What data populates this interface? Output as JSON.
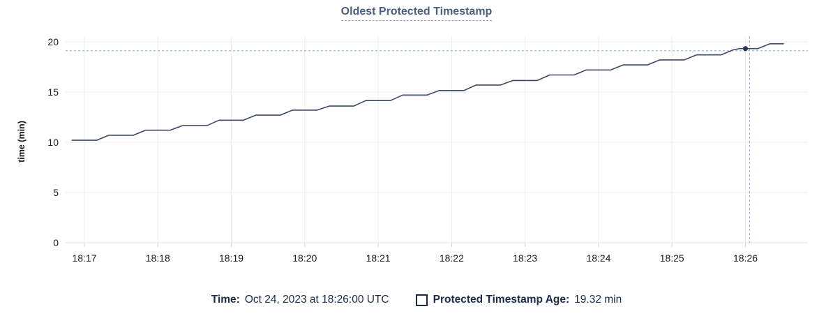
{
  "title": "Oldest Protected Timestamp",
  "legend": {
    "time_label": "Time:",
    "time_value": "Oct 24, 2023 at 18:26:00 UTC",
    "series_label": "Protected Timestamp Age:",
    "series_value": "19.32 min"
  },
  "chart_data": {
    "type": "line",
    "title": "Oldest Protected Timestamp",
    "xlabel": "",
    "ylabel": "time (min)",
    "y_ticks": [
      0,
      5,
      10,
      15,
      20
    ],
    "x_tick_labels": [
      "18:17",
      "18:18",
      "18:19",
      "18:20",
      "18:21",
      "18:22",
      "18:23",
      "18:24",
      "18:25",
      "18:26"
    ],
    "xlim_minutes_after_1800": [
      16.744,
      26.85
    ],
    "ylim": [
      0,
      20.83
    ],
    "grid": true,
    "legend_position": "bottom",
    "series": [
      {
        "name": "Protected Timestamp Age",
        "unit": "min",
        "points": [
          [
            "18:16:50",
            10.2
          ],
          [
            "18:17:10",
            10.2
          ],
          [
            "18:17:20",
            10.7
          ],
          [
            "18:17:40",
            10.7
          ],
          [
            "18:17:50",
            11.2
          ],
          [
            "18:18:10",
            11.2
          ],
          [
            "18:18:20",
            11.65
          ],
          [
            "18:18:40",
            11.65
          ],
          [
            "18:18:50",
            12.2
          ],
          [
            "18:19:10",
            12.2
          ],
          [
            "18:19:20",
            12.7
          ],
          [
            "18:19:40",
            12.7
          ],
          [
            "18:19:50",
            13.2
          ],
          [
            "18:20:10",
            13.2
          ],
          [
            "18:20:20",
            13.6
          ],
          [
            "18:20:40",
            13.6
          ],
          [
            "18:20:50",
            14.15
          ],
          [
            "18:21:10",
            14.15
          ],
          [
            "18:21:20",
            14.7
          ],
          [
            "18:21:40",
            14.7
          ],
          [
            "18:21:50",
            15.15
          ],
          [
            "18:22:10",
            15.15
          ],
          [
            "18:22:20",
            15.7
          ],
          [
            "18:22:40",
            15.7
          ],
          [
            "18:22:50",
            16.15
          ],
          [
            "18:23:10",
            16.15
          ],
          [
            "18:23:20",
            16.7
          ],
          [
            "18:23:40",
            16.7
          ],
          [
            "18:23:50",
            17.2
          ],
          [
            "18:24:10",
            17.2
          ],
          [
            "18:24:20",
            17.7
          ],
          [
            "18:24:40",
            17.7
          ],
          [
            "18:24:50",
            18.2
          ],
          [
            "18:25:10",
            18.2
          ],
          [
            "18:25:20",
            18.7
          ],
          [
            "18:25:40",
            18.7
          ],
          [
            "18:25:50",
            19.2
          ],
          [
            "18:25:55",
            19.32
          ],
          [
            "18:26:10",
            19.32
          ],
          [
            "18:26:20",
            19.8
          ],
          [
            "18:26:31",
            19.8
          ]
        ]
      }
    ],
    "highlight": {
      "time": "18:26:00",
      "value": 19.32,
      "time_label": "Oct 24, 2023 at 18:26:00 UTC",
      "value_label": "19.32 min"
    },
    "colors": {
      "line": "#3b4a63",
      "point": "#2c3950",
      "crosshair": "#a4b7c6",
      "grid": "#ededed",
      "axis_line": "#e0e0e0",
      "tick_mark": "#d4d4d4",
      "axis_text": "#1a1a1a",
      "title": "#4d5d7c",
      "legend_text": "#1b2a48"
    }
  }
}
